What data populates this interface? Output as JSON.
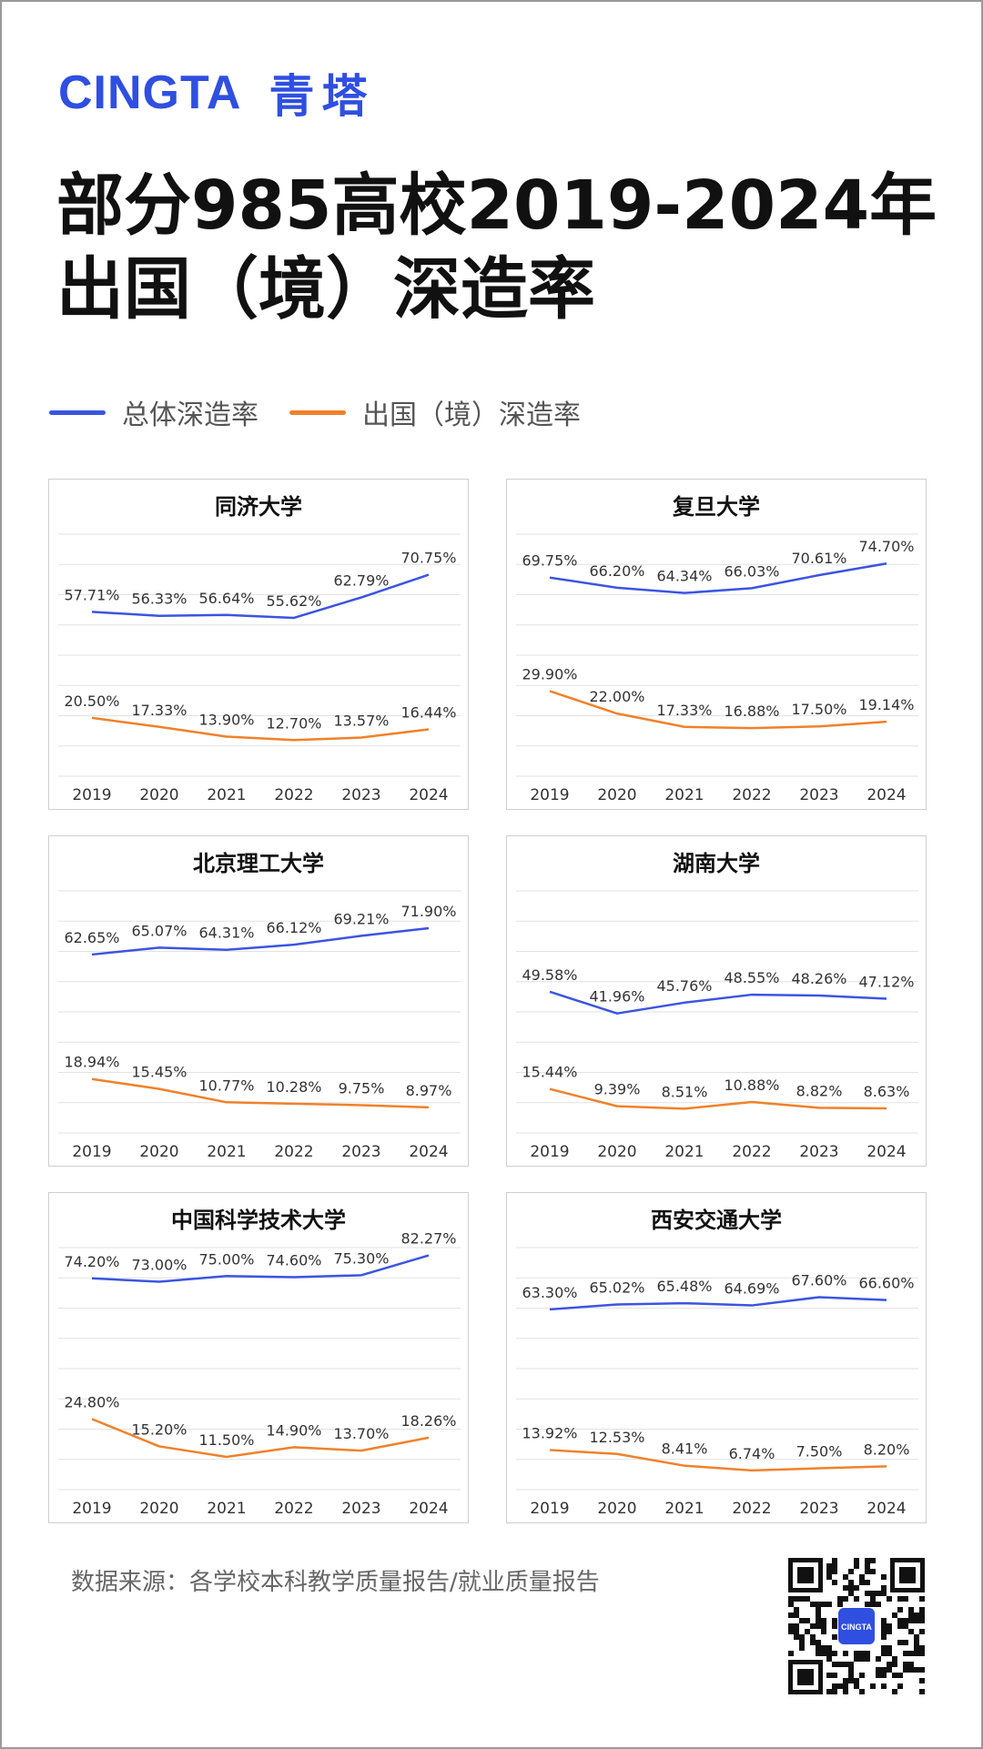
{
  "brand": {
    "logo_en": "CINGTA",
    "logo_cn": "青塔",
    "color_blue": "#2f4fe0"
  },
  "title": {
    "line1": "部分985高校2019-2024年",
    "line2": "出国（境）深造率"
  },
  "legend": [
    {
      "label": "总体深造率",
      "color": "#3b55e0"
    },
    {
      "label": "出国（境）深造率",
      "color": "#f0812a"
    }
  ],
  "chart_data": [
    {
      "type": "line",
      "title": "同济大学",
      "categories": [
        "2019",
        "2020",
        "2021",
        "2022",
        "2023",
        "2024"
      ],
      "series": [
        {
          "name": "总体深造率",
          "values": [
            57.71,
            56.33,
            56.64,
            55.62,
            62.79,
            70.75
          ],
          "labels": [
            "57.71%",
            "56.33%",
            "56.64%",
            "55.62%",
            "62.79%",
            "70.75%"
          ]
        },
        {
          "name": "出国（境）深造率",
          "values": [
            20.5,
            17.33,
            13.9,
            12.7,
            13.57,
            16.44
          ],
          "labels": [
            "20.50%",
            "17.33%",
            "13.90%",
            "12.70%",
            "13.57%",
            "16.44%"
          ]
        }
      ]
    },
    {
      "type": "line",
      "title": "复旦大学",
      "categories": [
        "2019",
        "2020",
        "2021",
        "2022",
        "2023",
        "2024"
      ],
      "series": [
        {
          "name": "总体深造率",
          "values": [
            69.75,
            66.2,
            64.34,
            66.03,
            70.61,
            74.7
          ],
          "labels": [
            "69.75%",
            "66.20%",
            "64.34%",
            "66.03%",
            "70.61%",
            "74.70%"
          ]
        },
        {
          "name": "出国（境）深造率",
          "values": [
            29.9,
            22.0,
            17.33,
            16.88,
            17.5,
            19.14
          ],
          "labels": [
            "29.90%",
            "22.00%",
            "17.33%",
            "16.88%",
            "17.50%",
            "19.14%"
          ]
        }
      ]
    },
    {
      "type": "line",
      "title": "北京理工大学",
      "categories": [
        "2019",
        "2020",
        "2021",
        "2022",
        "2023",
        "2024"
      ],
      "series": [
        {
          "name": "总体深造率",
          "values": [
            62.65,
            65.07,
            64.31,
            66.12,
            69.21,
            71.9
          ],
          "labels": [
            "62.65%",
            "65.07%",
            "64.31%",
            "66.12%",
            "69.21%",
            "71.90%"
          ]
        },
        {
          "name": "出国（境）深造率",
          "values": [
            18.94,
            15.45,
            10.77,
            10.28,
            9.75,
            8.97
          ],
          "labels": [
            "18.94%",
            "15.45%",
            "10.77%",
            "10.28%",
            "9.75%",
            "8.97%"
          ]
        }
      ]
    },
    {
      "type": "line",
      "title": "湖南大学",
      "categories": [
        "2019",
        "2020",
        "2021",
        "2022",
        "2023",
        "2024"
      ],
      "series": [
        {
          "name": "总体深造率",
          "values": [
            49.58,
            41.96,
            45.76,
            48.55,
            48.26,
            47.12
          ],
          "labels": [
            "49.58%",
            "41.96%",
            "45.76%",
            "48.55%",
            "48.26%",
            "47.12%"
          ]
        },
        {
          "name": "出国（境）深造率",
          "values": [
            15.44,
            9.39,
            8.51,
            10.88,
            8.82,
            8.63
          ],
          "labels": [
            "15.44%",
            "9.39%",
            "8.51%",
            "10.88%",
            "8.82%",
            "8.63%"
          ]
        }
      ]
    },
    {
      "type": "line",
      "title": "中国科学技术大学",
      "categories": [
        "2019",
        "2020",
        "2021",
        "2022",
        "2023",
        "2024"
      ],
      "series": [
        {
          "name": "总体深造率",
          "values": [
            74.2,
            73.0,
            75.0,
            74.6,
            75.3,
            82.27
          ],
          "labels": [
            "74.20%",
            "73.00%",
            "75.00%",
            "74.60%",
            "75.30%",
            "82.27%"
          ]
        },
        {
          "name": "出国（境）深造率",
          "values": [
            24.8,
            15.2,
            11.5,
            14.9,
            13.7,
            18.26
          ],
          "labels": [
            "24.80%",
            "15.20%",
            "11.50%",
            "14.90%",
            "13.70%",
            "18.26%"
          ]
        }
      ]
    },
    {
      "type": "line",
      "title": "西安交通大学",
      "categories": [
        "2019",
        "2020",
        "2021",
        "2022",
        "2023",
        "2024"
      ],
      "series": [
        {
          "name": "总体深造率",
          "values": [
            63.3,
            65.02,
            65.48,
            64.69,
            67.6,
            66.6
          ],
          "labels": [
            "63.30%",
            "65.02%",
            "65.48%",
            "64.69%",
            "67.60%",
            "66.60%"
          ]
        },
        {
          "name": "出国（境）深造率",
          "values": [
            13.92,
            12.53,
            8.41,
            6.74,
            7.5,
            8.2
          ],
          "labels": [
            "13.92%",
            "12.53%",
            "8.41%",
            "6.74%",
            "7.50%",
            "8.20%"
          ]
        }
      ]
    }
  ],
  "footer": {
    "source": "数据来源：各学校本科教学质量报告/就业质量报告",
    "qr_badge": "CINGTA"
  }
}
